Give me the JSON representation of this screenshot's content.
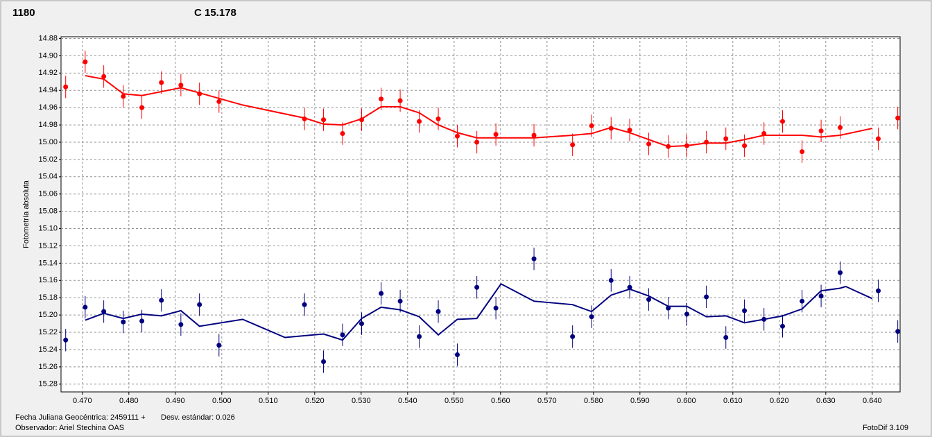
{
  "chart_data": {
    "type": "scatter",
    "ylabel": "Fotometría absoluta",
    "footer": {
      "julian": "Fecha Juliana Geocéntrica: 2459111 +",
      "stddev": "Desv. estándar: 0.026",
      "observer": "Observador: Ariel Stechina OAS",
      "version": "FotoDif 3.109"
    },
    "xlim": [
      0.4654,
      0.646
    ],
    "ylim": [
      15.289,
      14.878
    ],
    "grid": true,
    "xticks": [
      {
        "value": 0.47,
        "label": "0.470"
      },
      {
        "value": 0.48,
        "label": "0.480"
      },
      {
        "value": 0.49,
        "label": "0.490"
      },
      {
        "value": 0.5,
        "label": "0.500"
      },
      {
        "value": 0.51,
        "label": "0.510"
      },
      {
        "value": 0.52,
        "label": "0.520"
      },
      {
        "value": 0.53,
        "label": "0.530"
      },
      {
        "value": 0.54,
        "label": "0.540"
      },
      {
        "value": 0.55,
        "label": "0.550"
      },
      {
        "value": 0.56,
        "label": "0.560"
      },
      {
        "value": 0.57,
        "label": "0.570"
      },
      {
        "value": 0.58,
        "label": "0.580"
      },
      {
        "value": 0.59,
        "label": "0.590"
      },
      {
        "value": 0.6,
        "label": "0.600"
      },
      {
        "value": 0.61,
        "label": "0.610"
      },
      {
        "value": 0.62,
        "label": "0.620"
      },
      {
        "value": 0.63,
        "label": "0.630"
      },
      {
        "value": 0.64,
        "label": "0.640"
      }
    ],
    "yticks": [
      14.88,
      {
        "value": 14.9,
        "label": "14.90"
      },
      14.92,
      14.94,
      14.96,
      14.98,
      {
        "value": 15.0,
        "label": "15.00"
      },
      15.02,
      15.04,
      15.06,
      15.08,
      {
        "value": 15.1,
        "label": "15.10"
      },
      15.12,
      15.14,
      15.16,
      15.18,
      {
        "value": 15.2,
        "label": "15.20"
      },
      15.22,
      15.24,
      15.26,
      15.28
    ],
    "series": [
      {
        "name": "1180",
        "color": "#ff0000",
        "error": 0.013,
        "x": [
          0.4664,
          0.4706,
          0.4746,
          0.4788,
          0.4828,
          0.487,
          0.4912,
          0.4952,
          0.4994,
          0.5178,
          0.5219,
          0.526,
          0.5301,
          0.5343,
          0.5384,
          0.5425,
          0.5466,
          0.5507,
          0.5549,
          0.559,
          0.5672,
          0.5755,
          0.5796,
          0.5838,
          0.5878,
          0.5919,
          0.5961,
          0.6001,
          0.6043,
          0.6085,
          0.6125,
          0.6167,
          0.6207,
          0.6249,
          0.629,
          0.6331,
          0.6413,
          0.6455
        ],
        "values": [
          14.936,
          14.907,
          14.924,
          14.947,
          14.96,
          14.931,
          14.934,
          14.944,
          14.953,
          14.973,
          14.974,
          14.99,
          14.974,
          14.95,
          14.952,
          14.976,
          14.973,
          14.993,
          15.0,
          14.991,
          14.992,
          15.003,
          14.981,
          14.984,
          14.986,
          15.002,
          15.005,
          15.004,
          15.0,
          14.996,
          15.004,
          14.99,
          14.976,
          15.011,
          14.987,
          14.983,
          14.996,
          14.972
        ],
        "fit_x": [
          0.4706,
          0.4746,
          0.4788,
          0.4828,
          0.4912,
          0.4952,
          0.5045,
          0.5178,
          0.5219,
          0.526,
          0.5301,
          0.5343,
          0.5384,
          0.5425,
          0.5466,
          0.5507,
          0.5549,
          0.5672,
          0.5755,
          0.5796,
          0.5838,
          0.5878,
          0.5919,
          0.5961,
          0.6001,
          0.6043,
          0.6085,
          0.6125,
          0.6167,
          0.6249,
          0.629,
          0.6331,
          0.64
        ],
        "fit_values": [
          14.923,
          14.927,
          14.944,
          14.946,
          14.937,
          14.943,
          14.957,
          14.972,
          14.979,
          14.98,
          14.973,
          14.959,
          14.959,
          14.966,
          14.98,
          14.989,
          14.995,
          14.995,
          14.992,
          14.99,
          14.983,
          14.989,
          14.997,
          15.005,
          15.004,
          15.001,
          15.001,
          14.997,
          14.992,
          14.992,
          14.994,
          14.992,
          14.984
        ]
      },
      {
        "name": "C 15.178",
        "color": "#000080",
        "error": 0.013,
        "x": [
          0.4664,
          0.4706,
          0.4746,
          0.4788,
          0.4828,
          0.487,
          0.4912,
          0.4952,
          0.4994,
          0.5178,
          0.5219,
          0.526,
          0.5301,
          0.5343,
          0.5384,
          0.5425,
          0.5466,
          0.5507,
          0.5549,
          0.559,
          0.5672,
          0.5755,
          0.5796,
          0.5838,
          0.5878,
          0.5919,
          0.5961,
          0.6001,
          0.6043,
          0.6085,
          0.6125,
          0.6167,
          0.6207,
          0.6249,
          0.629,
          0.6331,
          0.6413,
          0.6455
        ],
        "values": [
          15.229,
          15.191,
          15.196,
          15.208,
          15.207,
          15.183,
          15.211,
          15.188,
          15.235,
          15.188,
          15.254,
          15.223,
          15.21,
          15.175,
          15.184,
          15.225,
          15.196,
          15.246,
          15.168,
          15.192,
          15.135,
          15.225,
          15.202,
          15.16,
          15.168,
          15.182,
          15.192,
          15.199,
          15.179,
          15.226,
          15.195,
          15.205,
          15.213,
          15.184,
          15.178,
          15.151,
          15.172,
          15.219
        ],
        "fit_x": [
          0.4706,
          0.4746,
          0.4788,
          0.4828,
          0.487,
          0.4912,
          0.4952,
          0.5045,
          0.5136,
          0.5219,
          0.526,
          0.5301,
          0.5343,
          0.5384,
          0.5425,
          0.5466,
          0.5507,
          0.5549,
          0.5601,
          0.5672,
          0.5755,
          0.5796,
          0.5838,
          0.5878,
          0.5919,
          0.5961,
          0.6001,
          0.6043,
          0.6085,
          0.6125,
          0.6167,
          0.6207,
          0.6249,
          0.629,
          0.6331,
          0.6343,
          0.64
        ],
        "fit_values": [
          15.206,
          15.198,
          15.204,
          15.199,
          15.201,
          15.195,
          15.213,
          15.205,
          15.226,
          15.222,
          15.229,
          15.204,
          15.191,
          15.194,
          15.202,
          15.223,
          15.205,
          15.204,
          15.164,
          15.184,
          15.188,
          15.196,
          15.177,
          15.17,
          15.178,
          15.19,
          15.19,
          15.202,
          15.201,
          15.209,
          15.205,
          15.201,
          15.193,
          15.172,
          15.169,
          15.167,
          15.181
        ]
      }
    ]
  }
}
